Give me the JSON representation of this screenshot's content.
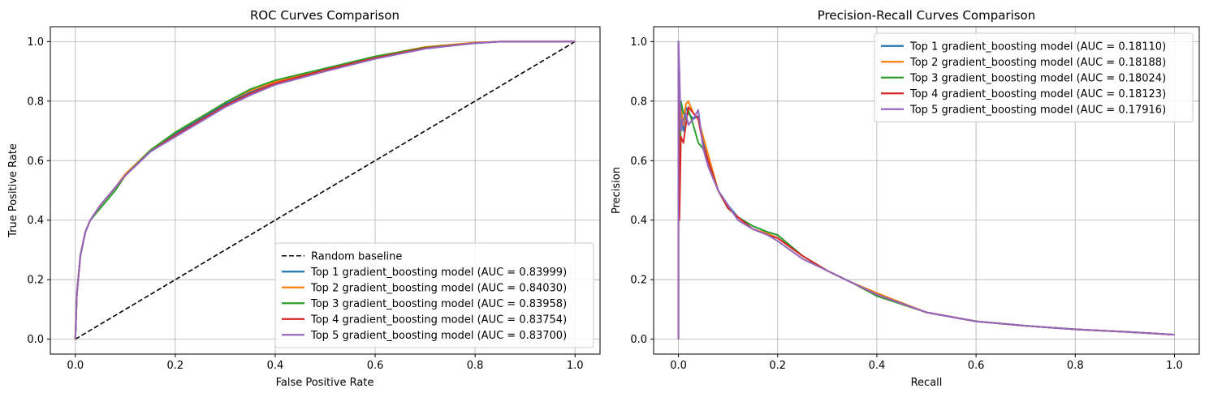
{
  "chart_data": [
    {
      "type": "line",
      "title": "ROC Curves Comparison",
      "xlabel": "False Positive Rate",
      "ylabel": "True Positive Rate",
      "xlim": [
        -0.05,
        1.05
      ],
      "ylim": [
        -0.05,
        1.05
      ],
      "xticks": [
        0.0,
        0.2,
        0.4,
        0.6,
        0.8,
        1.0
      ],
      "yticks": [
        0.0,
        0.2,
        0.4,
        0.6,
        0.8,
        1.0
      ],
      "grid": true,
      "legend_position": "lower-right",
      "series": [
        {
          "name": "Random baseline",
          "color": "#000000",
          "dashed": true,
          "x": [
            0,
            1
          ],
          "y": [
            0,
            1
          ]
        },
        {
          "name": "Top 1 gradient_boosting model (AUC = 0.83999)",
          "color": "#1f77b4",
          "x": [
            0,
            0.003,
            0.01,
            0.02,
            0.03,
            0.05,
            0.08,
            0.1,
            0.15,
            0.2,
            0.25,
            0.3,
            0.35,
            0.4,
            0.5,
            0.6,
            0.7,
            0.8,
            0.85,
            0.9,
            1.0
          ],
          "y": [
            0,
            0.15,
            0.28,
            0.36,
            0.4,
            0.45,
            0.51,
            0.55,
            0.63,
            0.69,
            0.74,
            0.79,
            0.83,
            0.86,
            0.91,
            0.95,
            0.98,
            0.995,
            1.0,
            1.0,
            1.0
          ]
        },
        {
          "name": "Top 2 gradient_boosting model (AUC = 0.84030)",
          "color": "#ff7f0e",
          "x": [
            0,
            0.003,
            0.01,
            0.02,
            0.03,
            0.05,
            0.08,
            0.1,
            0.15,
            0.2,
            0.25,
            0.3,
            0.35,
            0.4,
            0.5,
            0.6,
            0.7,
            0.8,
            0.85,
            0.9,
            1.0
          ],
          "y": [
            0,
            0.15,
            0.28,
            0.36,
            0.4,
            0.45,
            0.51,
            0.555,
            0.635,
            0.695,
            0.745,
            0.795,
            0.835,
            0.865,
            0.91,
            0.95,
            0.982,
            0.997,
            1.0,
            1.0,
            1.0
          ]
        },
        {
          "name": "Top 3 gradient_boosting model (AUC = 0.83958)",
          "color": "#2ca02c",
          "x": [
            0,
            0.003,
            0.01,
            0.02,
            0.03,
            0.05,
            0.08,
            0.1,
            0.15,
            0.2,
            0.25,
            0.3,
            0.35,
            0.4,
            0.5,
            0.6,
            0.7,
            0.8,
            0.85,
            0.9,
            1.0
          ],
          "y": [
            0,
            0.15,
            0.28,
            0.36,
            0.4,
            0.44,
            0.5,
            0.55,
            0.635,
            0.695,
            0.745,
            0.795,
            0.84,
            0.87,
            0.91,
            0.95,
            0.98,
            0.995,
            1.0,
            1.0,
            1.0
          ]
        },
        {
          "name": "Top 4 gradient_boosting model (AUC = 0.83754)",
          "color": "#d62728",
          "x": [
            0,
            0.003,
            0.01,
            0.02,
            0.03,
            0.05,
            0.08,
            0.1,
            0.15,
            0.2,
            0.25,
            0.3,
            0.35,
            0.4,
            0.5,
            0.6,
            0.7,
            0.8,
            0.85,
            0.9,
            1.0
          ],
          "y": [
            0,
            0.15,
            0.28,
            0.36,
            0.4,
            0.45,
            0.51,
            0.55,
            0.63,
            0.685,
            0.735,
            0.785,
            0.825,
            0.86,
            0.905,
            0.945,
            0.978,
            0.995,
            1.0,
            1.0,
            1.0
          ]
        },
        {
          "name": "Top 5 gradient_boosting model (AUC = 0.83700)",
          "color": "#9467bd",
          "x": [
            0,
            0.003,
            0.01,
            0.02,
            0.03,
            0.05,
            0.08,
            0.1,
            0.15,
            0.2,
            0.25,
            0.3,
            0.35,
            0.4,
            0.5,
            0.6,
            0.7,
            0.8,
            0.85,
            0.9,
            1.0
          ],
          "y": [
            0,
            0.15,
            0.28,
            0.36,
            0.4,
            0.45,
            0.51,
            0.55,
            0.63,
            0.68,
            0.73,
            0.78,
            0.82,
            0.855,
            0.9,
            0.942,
            0.976,
            0.995,
            1.0,
            1.0,
            1.0
          ]
        }
      ]
    },
    {
      "type": "line",
      "title": "Precision-Recall Curves Comparison",
      "xlabel": "Recall",
      "ylabel": "Precision",
      "xlim": [
        -0.05,
        1.05
      ],
      "ylim": [
        -0.05,
        1.05
      ],
      "xticks": [
        0.0,
        0.2,
        0.4,
        0.6,
        0.8,
        1.0
      ],
      "yticks": [
        0.0,
        0.2,
        0.4,
        0.6,
        0.8,
        1.0
      ],
      "grid": true,
      "legend_position": "upper-right",
      "series": [
        {
          "name": "Top 1 gradient_boosting model (AUC = 0.18110)",
          "color": "#1f77b4",
          "x": [
            0,
            0.0,
            0.002,
            0.005,
            0.01,
            0.015,
            0.02,
            0.03,
            0.04,
            0.05,
            0.06,
            0.08,
            0.1,
            0.12,
            0.15,
            0.18,
            0.2,
            0.25,
            0.3,
            0.35,
            0.4,
            0.5,
            0.6,
            0.7,
            0.8,
            0.9,
            1.0
          ],
          "y": [
            0,
            1.0,
            0.45,
            0.75,
            0.7,
            0.78,
            0.76,
            0.74,
            0.75,
            0.66,
            0.6,
            0.5,
            0.45,
            0.41,
            0.38,
            0.36,
            0.35,
            0.28,
            0.23,
            0.19,
            0.15,
            0.09,
            0.06,
            0.045,
            0.033,
            0.025,
            0.015
          ]
        },
        {
          "name": "Top 2 gradient_boosting model (AUC = 0.18188)",
          "color": "#ff7f0e",
          "x": [
            0,
            0.0,
            0.002,
            0.005,
            0.01,
            0.015,
            0.02,
            0.03,
            0.04,
            0.05,
            0.06,
            0.08,
            0.1,
            0.12,
            0.15,
            0.18,
            0.2,
            0.25,
            0.3,
            0.35,
            0.4,
            0.5,
            0.6,
            0.7,
            0.8,
            0.9,
            1.0
          ],
          "y": [
            0,
            1.0,
            0.5,
            0.78,
            0.72,
            0.79,
            0.8,
            0.76,
            0.74,
            0.68,
            0.62,
            0.5,
            0.44,
            0.41,
            0.37,
            0.355,
            0.34,
            0.28,
            0.23,
            0.19,
            0.155,
            0.09,
            0.06,
            0.045,
            0.033,
            0.025,
            0.015
          ]
        },
        {
          "name": "Top 3 gradient_boosting model (AUC = 0.18024)",
          "color": "#2ca02c",
          "x": [
            0,
            0.0,
            0.002,
            0.005,
            0.01,
            0.015,
            0.02,
            0.03,
            0.04,
            0.05,
            0.06,
            0.08,
            0.1,
            0.12,
            0.15,
            0.18,
            0.2,
            0.25,
            0.3,
            0.35,
            0.4,
            0.5,
            0.6,
            0.7,
            0.8,
            0.9,
            1.0
          ],
          "y": [
            0,
            1.0,
            0.6,
            0.8,
            0.76,
            0.74,
            0.77,
            0.72,
            0.66,
            0.64,
            0.6,
            0.5,
            0.44,
            0.41,
            0.38,
            0.36,
            0.35,
            0.28,
            0.23,
            0.19,
            0.145,
            0.09,
            0.06,
            0.045,
            0.033,
            0.025,
            0.015
          ]
        },
        {
          "name": "Top 4 gradient_boosting model (AUC = 0.18123)",
          "color": "#d62728",
          "x": [
            0,
            0.0,
            0.002,
            0.005,
            0.01,
            0.015,
            0.02,
            0.03,
            0.04,
            0.05,
            0.06,
            0.08,
            0.1,
            0.12,
            0.15,
            0.18,
            0.2,
            0.25,
            0.3,
            0.35,
            0.4,
            0.5,
            0.6,
            0.7,
            0.8,
            0.9,
            1.0
          ],
          "y": [
            0,
            1.0,
            0.4,
            0.68,
            0.66,
            0.72,
            0.78,
            0.76,
            0.74,
            0.65,
            0.6,
            0.5,
            0.44,
            0.41,
            0.37,
            0.35,
            0.34,
            0.28,
            0.23,
            0.19,
            0.15,
            0.09,
            0.06,
            0.045,
            0.033,
            0.025,
            0.015
          ]
        },
        {
          "name": "Top 5 gradient_boosting model (AUC = 0.17916)",
          "color": "#9467bd",
          "x": [
            0,
            0.0,
            0.002,
            0.005,
            0.01,
            0.015,
            0.02,
            0.03,
            0.04,
            0.05,
            0.06,
            0.08,
            0.1,
            0.12,
            0.15,
            0.18,
            0.2,
            0.25,
            0.3,
            0.35,
            0.4,
            0.5,
            0.6,
            0.7,
            0.8,
            0.9,
            1.0
          ],
          "y": [
            0,
            1.0,
            0.9,
            0.7,
            0.74,
            0.76,
            0.72,
            0.74,
            0.77,
            0.64,
            0.58,
            0.5,
            0.45,
            0.4,
            0.37,
            0.35,
            0.33,
            0.27,
            0.23,
            0.19,
            0.15,
            0.09,
            0.06,
            0.045,
            0.033,
            0.025,
            0.015
          ]
        }
      ]
    }
  ]
}
